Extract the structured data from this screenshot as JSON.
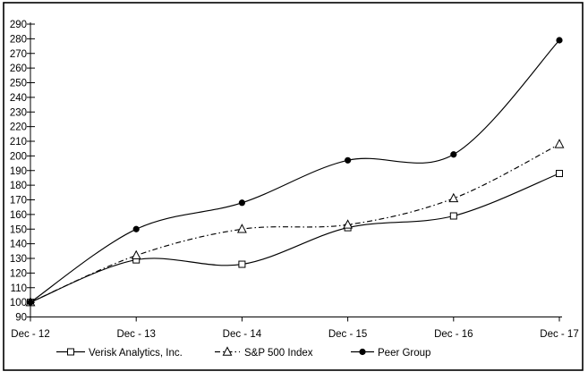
{
  "chart_data": {
    "type": "line",
    "title": "",
    "categories": [
      "Dec - 12",
      "Dec - 13",
      "Dec - 14",
      "Dec - 15",
      "Dec - 16",
      "Dec - 17"
    ],
    "series": [
      {
        "name": "Verisk Analytics, Inc.",
        "marker": "square",
        "marker_fill": "open",
        "line_style": "solid",
        "values": [
          100,
          129,
          126,
          151,
          159,
          188
        ]
      },
      {
        "name": "S&P 500 Index",
        "marker": "triangle",
        "marker_fill": "open",
        "line_style": "dash-dot",
        "values": [
          100,
          132,
          150,
          153,
          171,
          208
        ]
      },
      {
        "name": "Peer Group",
        "marker": "circle",
        "marker_fill": "filled",
        "line_style": "solid",
        "values": [
          100,
          150,
          168,
          197,
          201,
          279
        ]
      }
    ],
    "x_axis": {
      "label": "",
      "tick_labels": [
        "Dec - 12",
        "Dec - 13",
        "Dec - 14",
        "Dec - 15",
        "Dec - 16",
        "Dec - 17"
      ]
    },
    "y_axis": {
      "label": "",
      "min": 90,
      "max": 290,
      "step": 10,
      "tick_labels": [
        "90",
        "100",
        "110",
        "120",
        "130",
        "140",
        "150",
        "160",
        "170",
        "180",
        "190",
        "200",
        "210",
        "220",
        "230",
        "240",
        "250",
        "260",
        "270",
        "280",
        "290"
      ]
    },
    "legend_position": "bottom",
    "grid": false,
    "line_smoothing": true,
    "colors": {
      "line": "#000000",
      "text": "#000000",
      "background": "#ffffff",
      "frame_border": "#000000",
      "open_marker_fill": "#ffffff"
    }
  }
}
